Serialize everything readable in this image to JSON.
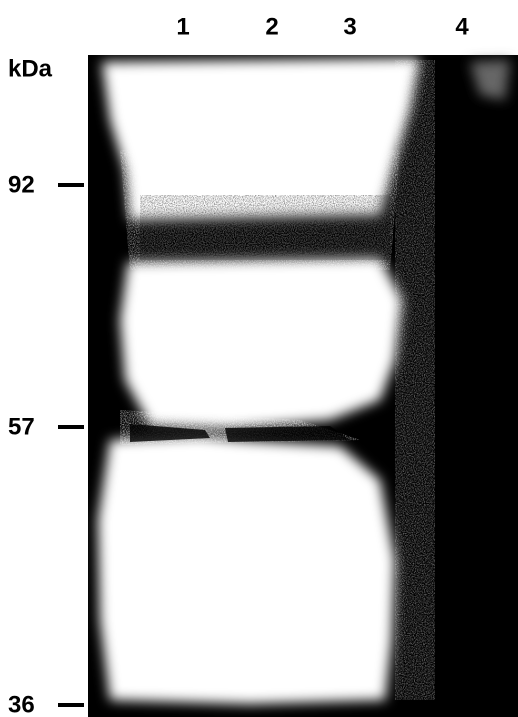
{
  "lanes": [
    "1",
    "2",
    "3",
    "4"
  ],
  "unit": "kDa",
  "markers": [
    "92",
    "57",
    "36"
  ]
}
